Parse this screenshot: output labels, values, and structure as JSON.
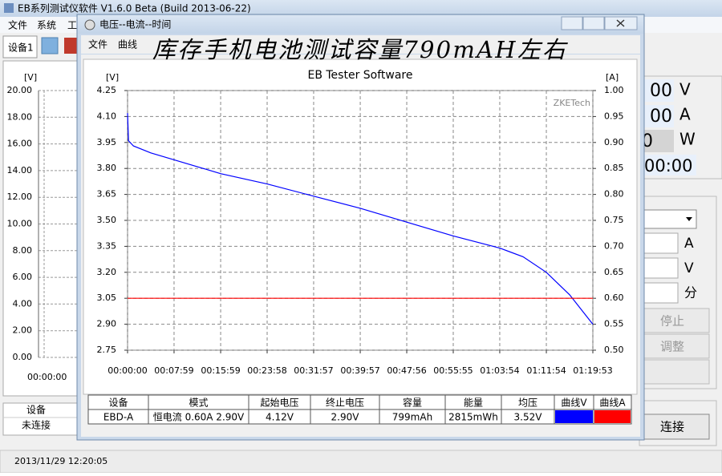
{
  "app": {
    "title": "EB系列测试仪软件 V1.6.0 Beta (Build 2013-06-22)",
    "menu": [
      "文件",
      "系统",
      "工"
    ],
    "tab": "设备1",
    "background_axis": {
      "y_label": "[V]",
      "yticks": [
        {
          "value": 20,
          "label": "20.00"
        },
        {
          "value": 18,
          "label": "18.00"
        },
        {
          "value": 16,
          "label": "16.00"
        },
        {
          "value": 14,
          "label": "14.00"
        },
        {
          "value": 12,
          "label": "12.00"
        },
        {
          "value": 10,
          "label": "10.00"
        },
        {
          "value": 8,
          "label": "8.00"
        },
        {
          "value": 6,
          "label": "6.00"
        },
        {
          "value": 4,
          "label": "4.00"
        },
        {
          "value": 2,
          "label": "2.00"
        },
        {
          "value": 0,
          "label": "0.00"
        }
      ],
      "ylim": [
        0,
        20
      ],
      "x_label": "00:00:00"
    },
    "readouts": [
      {
        "value": "00",
        "unit": "V"
      },
      {
        "value": "00",
        "unit": "A"
      },
      {
        "value": "0",
        "unit": "W"
      },
      {
        "value": "00:00"
      }
    ],
    "input_units": [
      "A",
      "V",
      "分"
    ],
    "buttons": [
      "停止",
      "调整",
      "连接"
    ],
    "device_table": {
      "header": "设备",
      "row": "未连接"
    },
    "status": "2013/11/29 12:20:05"
  },
  "window": {
    "title": "电压--电流--时间",
    "menu": [
      "文件",
      "曲线"
    ],
    "banner": "库存手机电池测试容量790mAH左右",
    "summary": {
      "headers": [
        "设备",
        "模式",
        "起始电压",
        "终止电压",
        "容量",
        "能量",
        "均压",
        "曲线V",
        "曲线A"
      ],
      "row": [
        "EBD-A",
        "恒电流 0.60A 2.90V",
        "4.12V",
        "2.90V",
        "799mAh",
        "2815mWh",
        "3.52V"
      ]
    }
  },
  "chart_data": {
    "type": "line",
    "title": "EB Tester Software",
    "y_label": "[V]",
    "y2_label": "[A]",
    "watermark": "ZKETech",
    "grid": true,
    "x": [
      0,
      10,
      60,
      240,
      479,
      959,
      1438,
      1917,
      2397,
      2876,
      3355,
      3834,
      4074,
      4314,
      4554,
      4793
    ],
    "xlim": [
      0,
      4793
    ],
    "xticks": [
      {
        "value": 0,
        "label": "00:00:00"
      },
      {
        "value": 479,
        "label": "00:07:59"
      },
      {
        "value": 959,
        "label": "00:15:59"
      },
      {
        "value": 1438,
        "label": "00:23:58"
      },
      {
        "value": 1917,
        "label": "00:31:57"
      },
      {
        "value": 2397,
        "label": "00:39:57"
      },
      {
        "value": 2876,
        "label": "00:47:56"
      },
      {
        "value": 3355,
        "label": "00:55:55"
      },
      {
        "value": 3834,
        "label": "01:03:54"
      },
      {
        "value": 4314,
        "label": "01:11:54"
      },
      {
        "value": 4793,
        "label": "01:19:53"
      }
    ],
    "ylim": [
      2.75,
      4.25
    ],
    "yticks": [
      4.25,
      {
        "value": 4.1,
        "label": "4.10"
      },
      3.95,
      {
        "value": 3.8,
        "label": "3.80"
      },
      3.65,
      {
        "value": 3.5,
        "label": "3.50"
      },
      3.35,
      {
        "value": 3.2,
        "label": "3.20"
      },
      3.05,
      {
        "value": 2.9,
        "label": "2.90"
      },
      2.75
    ],
    "y2lim": [
      0.5,
      1.0
    ],
    "y2ticks": [
      {
        "value": 1.0,
        "label": "1.00"
      },
      0.95,
      {
        "value": 0.9,
        "label": "0.90"
      },
      0.85,
      {
        "value": 0.8,
        "label": "0.80"
      },
      0.75,
      {
        "value": 0.7,
        "label": "0.70"
      },
      0.65,
      {
        "value": 0.6,
        "label": "0.60"
      },
      0.55,
      {
        "value": 0.5,
        "label": "0.50"
      }
    ],
    "series": [
      {
        "name": "曲线V",
        "color": "#0000ff",
        "values": [
          4.12,
          3.96,
          3.93,
          3.89,
          3.85,
          3.77,
          3.71,
          3.64,
          3.57,
          3.49,
          3.41,
          3.34,
          3.29,
          3.2,
          3.07,
          2.9
        ]
      },
      {
        "name": "曲线A",
        "color": "#ff0000",
        "axis": "y2",
        "values": [
          0.6,
          0.6,
          0.6,
          0.6,
          0.6,
          0.6,
          0.6,
          0.6,
          0.6,
          0.6,
          0.6,
          0.6,
          0.6,
          0.6,
          0.6,
          0.6
        ]
      }
    ]
  }
}
